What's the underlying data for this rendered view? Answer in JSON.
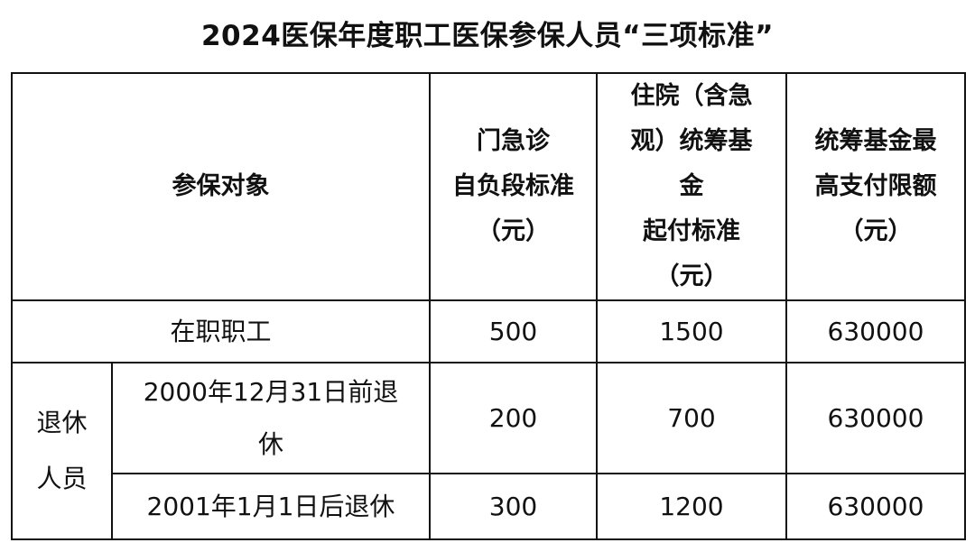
{
  "title": "2024医保年度职工医保参保人员“三项标准”",
  "table": {
    "headers": [
      "参保对象",
      "门急诊\n自负段标准\n（元）",
      "住院（含急\n观）统筹基\n金\n起付标准\n（元）",
      "统筹基金最\n高支付限额\n（元）"
    ],
    "rows": [
      {
        "group": "",
        "label": "在职职工",
        "values": [
          "500",
          "1500",
          "630000"
        ]
      },
      {
        "group": "退休\n人员",
        "label": "2000年12月31日前退\n休",
        "values": [
          "200",
          "700",
          "630000"
        ]
      },
      {
        "group": "退休\n人员",
        "label": "2001年1月1日后退休",
        "values": [
          "300",
          "1200",
          "630000"
        ]
      }
    ]
  }
}
